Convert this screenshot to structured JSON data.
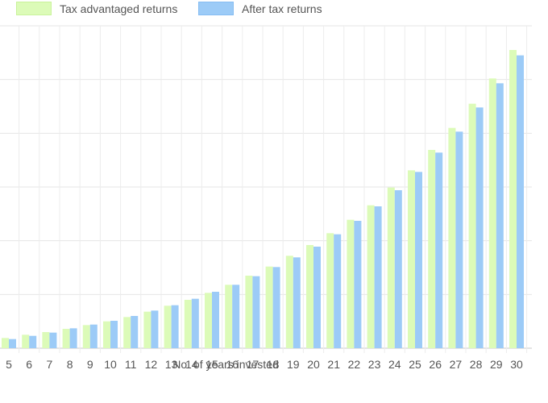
{
  "legend": [
    {
      "name": "Tax advantaged returns",
      "color": "#dcfbb8",
      "border": "#c9f29b"
    },
    {
      "name": "After tax returns",
      "color": "#9ccbf7",
      "border": "#86bdf2"
    }
  ],
  "chart_data": {
    "type": "bar",
    "title": "",
    "xlabel": "No. of years invested",
    "ylabel": "",
    "grid": true,
    "legend_position": "top-left",
    "categories": [
      "5",
      "6",
      "7",
      "8",
      "9",
      "10",
      "11",
      "12",
      "13",
      "14",
      "15",
      "16",
      "17",
      "18",
      "19",
      "20",
      "21",
      "22",
      "23",
      "24",
      "25",
      "26",
      "27",
      "28",
      "29",
      "30"
    ],
    "ylim": [
      0,
      6
    ],
    "series": [
      {
        "name": "Tax advantaged returns",
        "color": "#dcfbb8",
        "values": [
          0.19,
          0.25,
          0.3,
          0.36,
          0.43,
          0.5,
          0.58,
          0.68,
          0.79,
          0.9,
          1.03,
          1.18,
          1.35,
          1.52,
          1.72,
          1.92,
          2.14,
          2.39,
          2.66,
          2.99,
          3.31,
          3.69,
          4.1,
          4.55,
          5.02,
          5.55
        ]
      },
      {
        "name": "After tax returns",
        "color": "#9ccbf7",
        "values": [
          0.17,
          0.23,
          0.29,
          0.37,
          0.44,
          0.51,
          0.6,
          0.7,
          0.8,
          0.92,
          1.05,
          1.18,
          1.34,
          1.51,
          1.69,
          1.89,
          2.12,
          2.37,
          2.64,
          2.94,
          3.28,
          3.64,
          4.03,
          4.48,
          4.93,
          5.45
        ]
      }
    ]
  }
}
